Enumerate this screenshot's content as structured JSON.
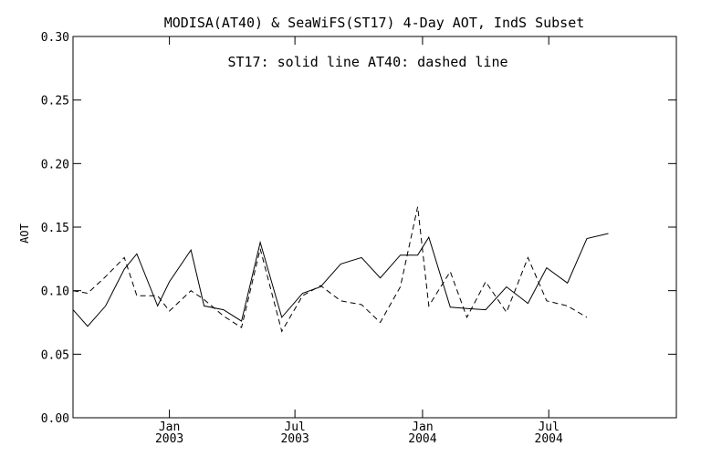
{
  "chart_data": {
    "type": "line",
    "title": "MODISA(AT40) & SeaWiFS(ST17) 4-Day AOT, IndS Subset",
    "annotation": "ST17: solid line   AT40: dashed line",
    "ylabel": "AOT",
    "xlabel": "",
    "ylim": [
      0.0,
      0.3
    ],
    "yticks": [
      "0.00",
      "0.05",
      "0.10",
      "0.15",
      "0.20",
      "0.25",
      "0.30"
    ],
    "x_range": [
      "2002-08-15",
      "2005-01-01"
    ],
    "xticks": [
      {
        "date": "2003-01-01",
        "month": "Jan",
        "year": "2003"
      },
      {
        "date": "2003-07-01",
        "month": "Jul",
        "year": "2003"
      },
      {
        "date": "2004-01-01",
        "month": "Jan",
        "year": "2004"
      },
      {
        "date": "2004-07-01",
        "month": "Jul",
        "year": "2004"
      }
    ],
    "grid": false,
    "x": [
      "2002-08-15",
      "2002-09-05",
      "2002-10-01",
      "2002-10-28",
      "2002-11-15",
      "2002-12-15",
      "2003-01-01",
      "2003-02-01",
      "2003-02-20",
      "2003-03-20",
      "2003-04-15",
      "2003-05-12",
      "2003-06-12",
      "2003-07-12",
      "2003-08-07",
      "2003-09-05",
      "2003-10-05",
      "2003-11-01",
      "2003-11-30",
      "2003-12-25",
      "2004-01-10",
      "2004-02-10",
      "2004-03-05",
      "2004-04-01",
      "2004-05-01",
      "2004-06-01",
      "2004-06-28",
      "2004-07-28",
      "2004-08-25",
      "2004-09-25",
      "2004-10-25",
      "2004-11-22",
      "2004-12-25"
    ],
    "series": [
      {
        "name": "ST17",
        "style": "solid",
        "values": [
          0.085,
          0.072,
          0.088,
          0.117,
          0.129,
          0.088,
          0.107,
          0.132,
          0.088,
          0.085,
          0.076,
          0.138,
          0.079,
          0.098,
          0.103,
          0.121,
          0.126,
          0.11,
          0.128,
          0.128,
          0.142,
          0.087,
          0.086,
          0.085,
          0.103,
          0.09,
          0.118,
          0.106,
          0.141,
          0.145,
          null,
          null,
          null
        ]
      },
      {
        "name": "AT40",
        "style": "dashed",
        "values": [
          0.1,
          0.098,
          0.111,
          0.126,
          0.096,
          0.096,
          0.084,
          0.1,
          0.093,
          0.08,
          0.071,
          0.133,
          0.068,
          0.096,
          0.104,
          0.092,
          0.089,
          0.075,
          0.103,
          0.166,
          0.088,
          0.115,
          0.079,
          0.107,
          0.083,
          0.126,
          0.092,
          0.088,
          0.079,
          null,
          null,
          null,
          null
        ]
      }
    ]
  }
}
